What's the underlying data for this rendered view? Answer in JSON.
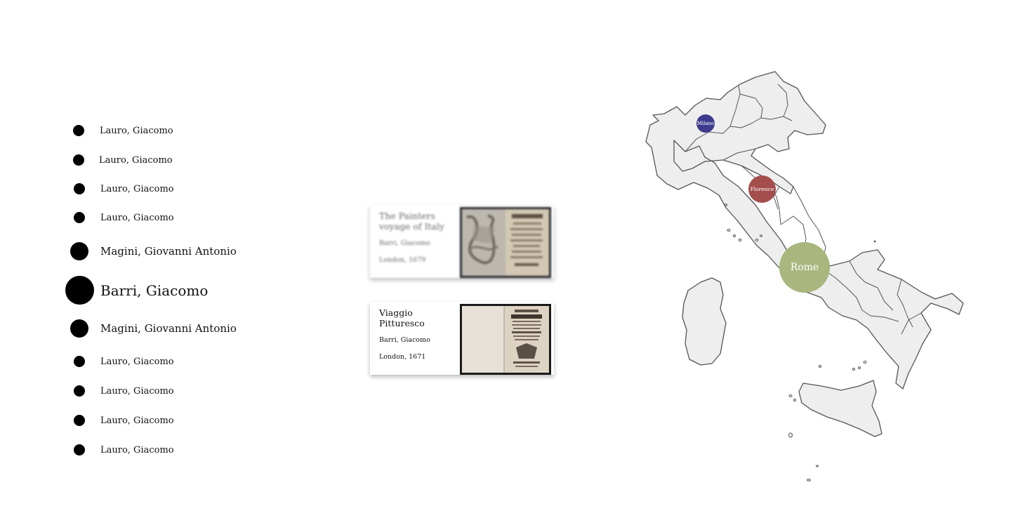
{
  "authors": [
    {
      "name": "Lauro, Giacomo"
    },
    {
      "name": "Lauro, Giacomo"
    },
    {
      "name": "Lauro, Giacomo"
    },
    {
      "name": "Lauro, Giacomo"
    },
    {
      "name": "Magini, Giovanni Antonio"
    },
    {
      "name": "Barri, Giacomo"
    },
    {
      "name": "Magini, Giovanni Antonio"
    },
    {
      "name": "Lauro, Giacomo"
    },
    {
      "name": "Lauro, Giacomo"
    },
    {
      "name": "Lauro, Giacomo"
    },
    {
      "name": "Lauro, Giacomo"
    }
  ],
  "books": [
    {
      "title": "The Painters voyage of Italy",
      "author": "Barri, Giacomo",
      "place": "London, 1679"
    },
    {
      "title": "Viaggio Pitturesco",
      "author": "Barri, Giacomo",
      "place": "London, 1671"
    }
  ],
  "map": {
    "cities": [
      {
        "name": "Milano",
        "color": "#3d3b8e"
      },
      {
        "name": "Florence",
        "color": "#a54e4e"
      },
      {
        "name": "Rome",
        "color": "#a9b67e"
      }
    ],
    "region_fill": "#eeeeee",
    "region_stroke": "#555555"
  },
  "icons": {
    "author_marker": "filled-circle-icon",
    "book_cover": "book-cover-image",
    "map": "italy-map"
  }
}
